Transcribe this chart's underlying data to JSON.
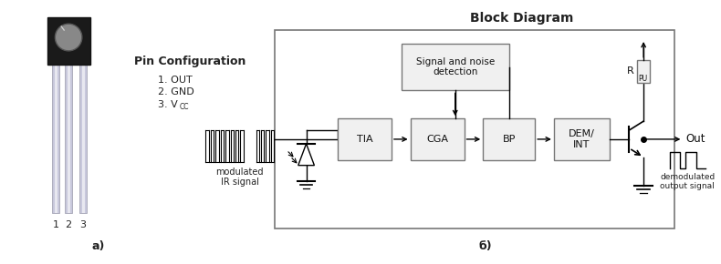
{
  "bg_color": "#ffffff",
  "title_a": "a)",
  "title_b": "б)",
  "pin_config_title": "Pin Configuration",
  "block_diagram_title": "Block Diagram",
  "top_block_text": "Signal and noise\ndetection",
  "out_label": "Out",
  "modulated_label": "modulated\nIR signal",
  "demodulated_label": "demodulated\noutput signal",
  "rpu_label_main": "R",
  "rpu_label_sub": "PU",
  "line_color": "#000000",
  "box_edge": "#888888",
  "text_color": "#222222"
}
